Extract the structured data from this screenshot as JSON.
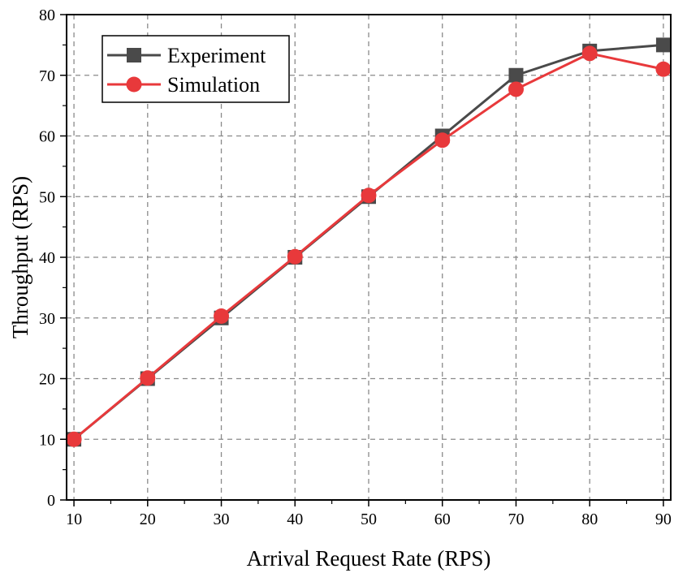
{
  "chart_data": {
    "type": "line",
    "xlabel": "Arrival Request Rate (RPS)",
    "ylabel": "Throughput (RPS)",
    "xlim": [
      9,
      91
    ],
    "ylim": [
      0,
      80
    ],
    "xticks": [
      10,
      20,
      30,
      40,
      50,
      60,
      70,
      80,
      90
    ],
    "yticks": [
      0,
      10,
      20,
      30,
      40,
      50,
      60,
      70,
      80
    ],
    "grid": true,
    "legend_position": "top-left",
    "x": [
      10,
      20,
      30,
      40,
      50,
      60,
      70,
      80,
      90
    ],
    "series": [
      {
        "name": "Experiment",
        "marker": "square",
        "color": "#4a4a4a",
        "values": [
          10,
          20,
          30,
          40,
          50,
          60,
          70,
          74,
          75
        ]
      },
      {
        "name": "Simulation",
        "marker": "circle",
        "color": "#e8393b",
        "values": [
          10,
          20.1,
          30.3,
          40.1,
          50.2,
          59.3,
          67.7,
          73.6,
          71
        ]
      }
    ]
  }
}
